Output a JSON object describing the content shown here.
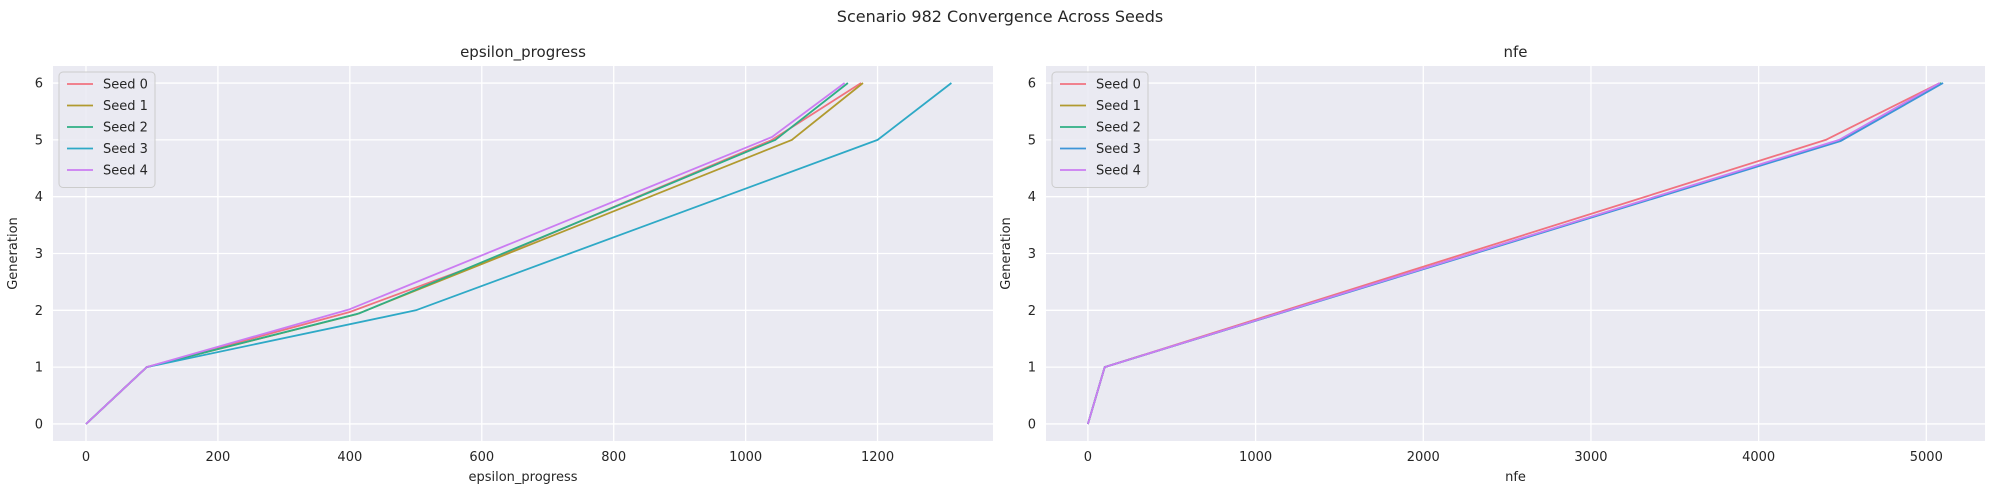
{
  "figure": {
    "title": "Scenario 982 Convergence Across Seeds"
  },
  "chart_data": [
    {
      "type": "line",
      "title": "epsilon_progress",
      "xlabel": "epsilon_progress",
      "ylabel": "Generation",
      "xlim": [
        -50,
        1375
      ],
      "ylim": [
        -0.3,
        6.3
      ],
      "xticks": [
        0,
        200,
        400,
        600,
        800,
        1000,
        1200
      ],
      "yticks": [
        0,
        1,
        2,
        3,
        4,
        5,
        6
      ],
      "grid": true,
      "legend_position": "upper-left",
      "series": [
        {
          "name": "Seed 0",
          "color": "#f0727f",
          "x": [
            0,
            92,
            400,
            600,
            800,
            1040,
            1175
          ],
          "y": [
            0,
            1,
            1.97,
            2.83,
            3.82,
            5.0,
            6
          ]
        },
        {
          "name": "Seed 1",
          "color": "#b19a2f",
          "x": [
            0,
            92,
            410,
            1070,
            1178
          ],
          "y": [
            0,
            1,
            1.93,
            5.0,
            6
          ]
        },
        {
          "name": "Seed 2",
          "color": "#2fae85",
          "x": [
            0,
            92,
            415,
            1045,
            1155
          ],
          "y": [
            0,
            1,
            1.95,
            5.0,
            6
          ]
        },
        {
          "name": "Seed 3",
          "color": "#2ea9c6",
          "x": [
            0,
            92,
            500,
            1200,
            1312
          ],
          "y": [
            0,
            1,
            2.0,
            5.0,
            6
          ]
        },
        {
          "name": "Seed 4",
          "color": "#cb7cf2",
          "x": [
            0,
            92,
            400,
            1040,
            1150
          ],
          "y": [
            0,
            1,
            2.02,
            5.05,
            6
          ]
        }
      ]
    },
    {
      "type": "line",
      "title": "nfe",
      "xlabel": "nfe",
      "ylabel": "Generation",
      "xlim": [
        -250,
        5350
      ],
      "ylim": [
        -0.3,
        6.3
      ],
      "xticks": [
        0,
        1000,
        2000,
        3000,
        4000,
        5000
      ],
      "yticks": [
        0,
        1,
        2,
        3,
        4,
        5,
        6
      ],
      "grid": true,
      "legend_position": "upper-left",
      "series": [
        {
          "name": "Seed 0",
          "color": "#f0727f",
          "x": [
            0,
            100,
            2250,
            4400,
            5080
          ],
          "y": [
            0,
            1,
            3.0,
            5.0,
            6
          ]
        },
        {
          "name": "Seed 1",
          "color": "#b19a2f",
          "x": [
            0,
            100,
            4490,
            5090
          ],
          "y": [
            0,
            1,
            5.0,
            6
          ]
        },
        {
          "name": "Seed 2",
          "color": "#2fae85",
          "x": [
            0,
            100,
            4490,
            5090
          ],
          "y": [
            0,
            1,
            5.0,
            6
          ]
        },
        {
          "name": "Seed 3",
          "color": "#3d95d8",
          "x": [
            0,
            100,
            4490,
            5100
          ],
          "y": [
            0,
            1,
            4.98,
            6
          ]
        },
        {
          "name": "Seed 4",
          "color": "#cb7cf2",
          "x": [
            0,
            100,
            4480,
            5080
          ],
          "y": [
            0,
            1,
            5.0,
            6
          ]
        }
      ]
    }
  ],
  "style": {
    "axes_bg": "#eaeaf2",
    "grid_color": "#ffffff",
    "text_color": "#262626"
  }
}
